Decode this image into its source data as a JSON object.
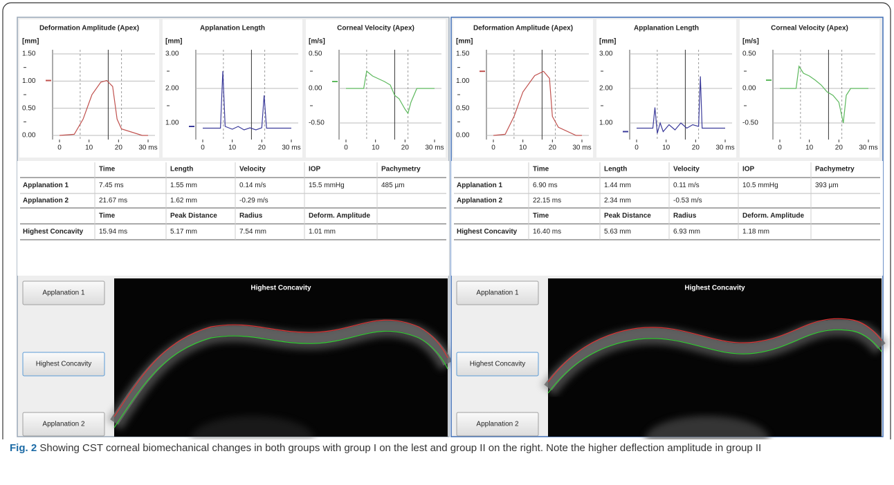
{
  "panels": [
    {
      "charts": [
        {
          "title": "Deformation Amplitude (Apex)",
          "unit": "[mm]",
          "yticks": [
            "1.50",
            "1.00",
            "0.50",
            "0.00"
          ],
          "xticks": [
            "0",
            "10",
            "20",
            "30 ms"
          ]
        },
        {
          "title": "Applanation Length",
          "unit": "[mm]",
          "yticks": [
            "3.00",
            "2.00",
            "1.00"
          ],
          "xticks": [
            "0",
            "10",
            "20",
            "30 ms"
          ]
        },
        {
          "title": "Corneal Velocity (Apex)",
          "unit": "[m/s]",
          "yticks": [
            "0.50",
            "0.00",
            "-0.50"
          ],
          "xticks": [
            "0",
            "10",
            "20",
            "30 ms"
          ]
        }
      ],
      "table": {
        "header1": [
          "Time",
          "Length",
          "Velocity",
          "IOP",
          "Pachymetry"
        ],
        "rows": [
          {
            "label": "Applanation 1",
            "cells": [
              "7.45 ms",
              "1.55 mm",
              "0.14 m/s",
              "15.5 mmHg",
              "485 µm"
            ]
          },
          {
            "label": "Applanation 2",
            "cells": [
              "21.67 ms",
              "1.62 mm",
              "-0.29 m/s"
            ]
          }
        ],
        "header2": [
          "Time",
          "Peak Distance",
          "Radius",
          "Deform. Amplitude"
        ],
        "concavity": {
          "label": "Highest Concavity",
          "cells": [
            "15.94 ms",
            "5.17 mm",
            "7.54 mm",
            "1.01 mm"
          ]
        }
      },
      "buttons": [
        "Applanation 1",
        "Highest Concavity",
        "Applanation 2"
      ],
      "image_title": "Highest Concavity"
    },
    {
      "charts": [
        {
          "title": "Deformation Amplitude (Apex)",
          "unit": "[mm]",
          "yticks": [
            "1.50",
            "1.00",
            "0.50",
            "0.00"
          ],
          "xticks": [
            "0",
            "10",
            "20",
            "30 ms"
          ]
        },
        {
          "title": "Applanation Length",
          "unit": "[mm]",
          "yticks": [
            "3.00",
            "2.00",
            "1.00"
          ],
          "xticks": [
            "0",
            "10",
            "20",
            "30 ms"
          ]
        },
        {
          "title": "Corneal Velocity (Apex)",
          "unit": "[m/s]",
          "yticks": [
            "0.50",
            "0.00",
            "-0.50"
          ],
          "xticks": [
            "0",
            "10",
            "20",
            "30 ms"
          ]
        }
      ],
      "table": {
        "header1": [
          "Time",
          "Length",
          "Velocity",
          "IOP",
          "Pachymetry"
        ],
        "rows": [
          {
            "label": "Applanation 1",
            "cells": [
              "6.90 ms",
              "1.44 mm",
              "0.11 m/s",
              "10.5 mmHg",
              "393 µm"
            ]
          },
          {
            "label": "Applanation 2",
            "cells": [
              "22.15 ms",
              "2.34 mm",
              "-0.53 m/s"
            ]
          }
        ],
        "header2": [
          "Time",
          "Peak Distance",
          "Radius",
          "Deform. Amplitude"
        ],
        "concavity": {
          "label": "Highest Concavity",
          "cells": [
            "16.40 ms",
            "5.63 mm",
            "6.93 mm",
            "1.18 mm"
          ]
        }
      },
      "buttons": [
        "Applanation 1",
        "Highest Concavity",
        "Applanation 2"
      ],
      "image_title": "Highest Concavity"
    }
  ],
  "caption": {
    "label": "Fig. 2",
    "text": "Showing CST corneal biomechanical changes in both groups with group I on the lest and group II on the right. Note the higher deflection amplitude in group II"
  }
}
